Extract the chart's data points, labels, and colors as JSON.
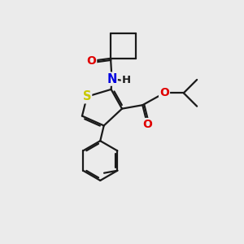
{
  "bg_color": "#ebebeb",
  "bond_color": "#1a1a1a",
  "S_color": "#c8c800",
  "N_color": "#0000e0",
  "O_color": "#e00000",
  "bond_width": 1.6,
  "figsize": [
    3.0,
    3.0
  ],
  "dpi": 100,
  "xlim": [
    0,
    10
  ],
  "ylim": [
    0,
    10
  ]
}
